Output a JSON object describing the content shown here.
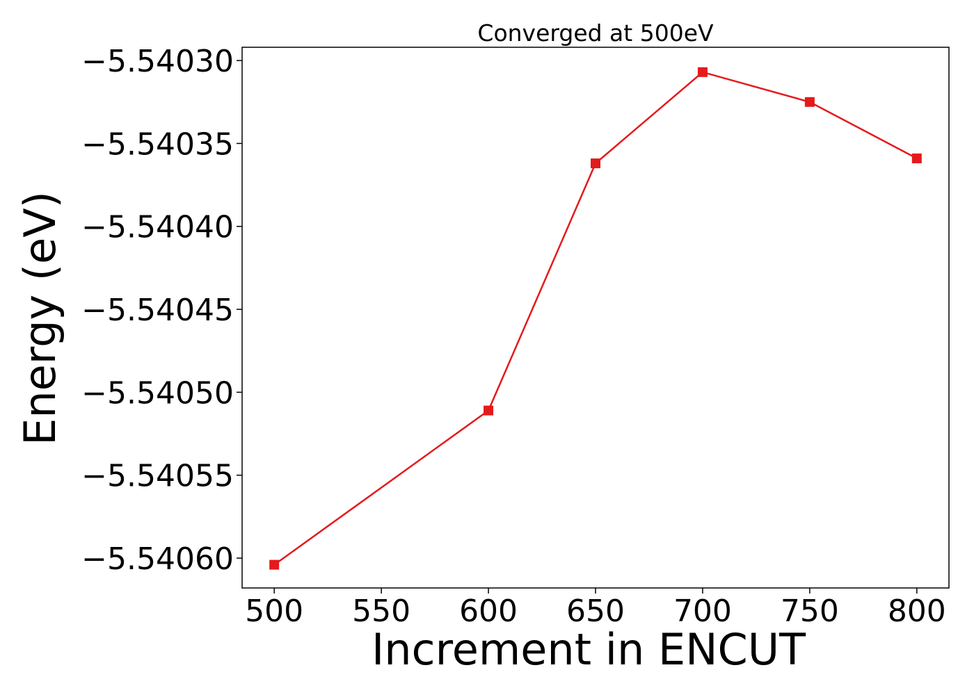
{
  "chart_data": {
    "type": "line",
    "title": "Converged at 500eV",
    "xlabel": "Increment in ENCUT",
    "ylabel": "Energy (eV)",
    "x": [
      500,
      600,
      650,
      700,
      750,
      800
    ],
    "series": [
      {
        "values": [
          -5.540604,
          -5.540511,
          -5.540362,
          -5.540307,
          -5.540325,
          -5.540359
        ]
      }
    ],
    "xlim": [
      485,
      815
    ],
    "ylim": [
      -5.540618,
      -5.540292
    ],
    "xticks": [
      500,
      550,
      600,
      650,
      700,
      750,
      800
    ],
    "xtick_labels": [
      "500",
      "550",
      "600",
      "650",
      "700",
      "750",
      "800"
    ],
    "yticks": [
      -5.5403,
      -5.54035,
      -5.5404,
      -5.54045,
      -5.5405,
      -5.54055,
      -5.5406
    ],
    "ytick_labels": [
      "−5.54030",
      "−5.54035",
      "−5.54040",
      "−5.54045",
      "−5.54050",
      "−5.54055",
      "−5.54060"
    ],
    "grid": false,
    "line_color": "#e41a1c",
    "marker": "square"
  }
}
